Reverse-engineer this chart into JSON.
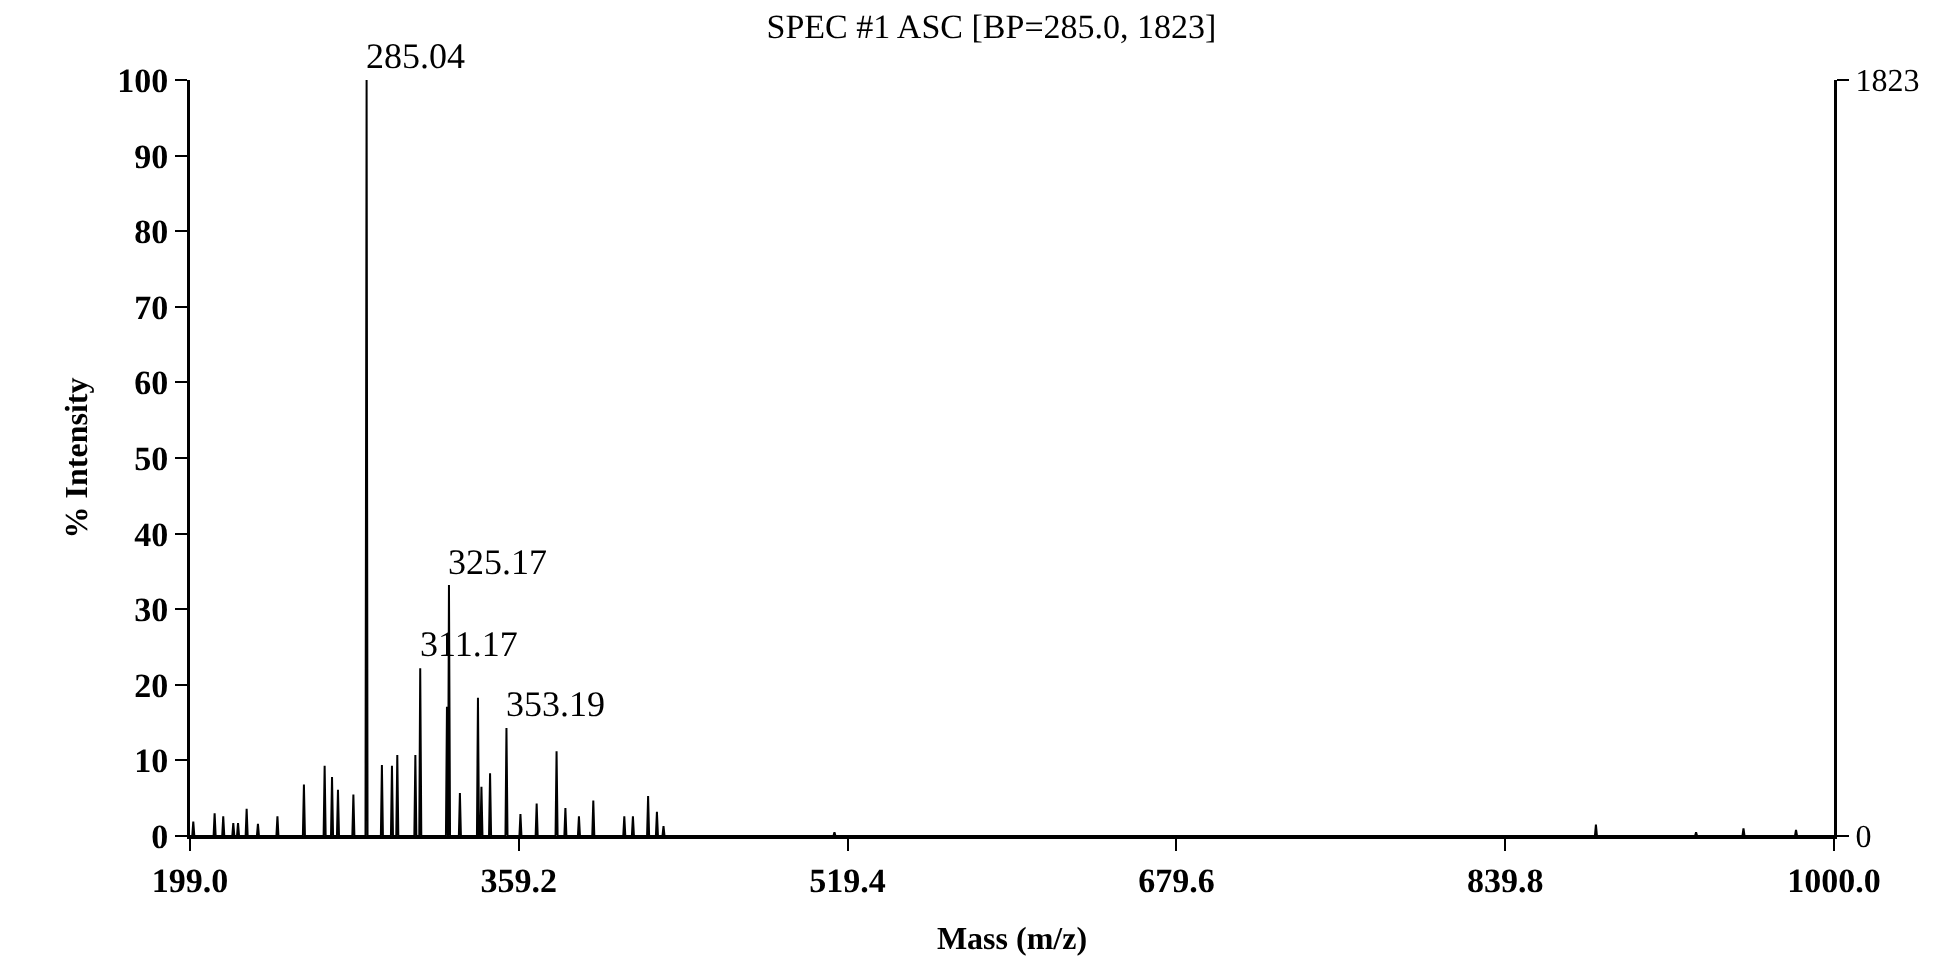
{
  "chart_data": {
    "type": "line",
    "title": "SPEC #1 ASC [BP=285.0, 1823]",
    "xlabel": "Mass (m/z)",
    "ylabel": "% Intensity",
    "series": [
      {
        "color": "#000000",
        "x": [
          199.0,
          200.1,
          200.6,
          201.1,
          210.5,
          211.0,
          211.5,
          214.7,
          215.2,
          215.7,
          219.6,
          220.1,
          220.6,
          221.9,
          222.4,
          222.9,
          226.1,
          226.6,
          227.1,
          231.6,
          232.1,
          232.6,
          241.1,
          241.6,
          242.1,
          254.0,
          254.5,
          255.0,
          264.1,
          264.6,
          265.1,
          267.7,
          268.2,
          268.7,
          270.6,
          271.1,
          271.6,
          278.1,
          278.6,
          279.1,
          284.5,
          285.04,
          285.5,
          292.0,
          292.5,
          293.0,
          296.9,
          297.4,
          297.9,
          299.5,
          300.0,
          300.5,
          308.3,
          308.8,
          309.3,
          310.7,
          311.17,
          311.7,
          323.7,
          324.2,
          324.7,
          325.17,
          325.7,
          330.0,
          330.5,
          331.0,
          338.8,
          339.3,
          339.8,
          340.5,
          341.0,
          341.5,
          344.7,
          345.2,
          345.7,
          352.7,
          353.19,
          353.7,
          359.5,
          360.0,
          360.5,
          367.4,
          367.9,
          368.4,
          377.1,
          377.6,
          378.1,
          381.4,
          381.9,
          382.4,
          388.0,
          388.5,
          389.0,
          395.0,
          395.5,
          396.0,
          410.1,
          410.6,
          411.1,
          414.3,
          414.8,
          415.3,
          421.7,
          422.2,
          422.7,
          426.0,
          426.5,
          427.0,
          429.2,
          429.7,
          430.2,
          512.5,
          513.0,
          513.5,
          883.5,
          884.0,
          884.5,
          932.3,
          932.8,
          933.3,
          955.4,
          955.9,
          956.4,
          981.0,
          981.5,
          982.0,
          1000.0
        ],
        "values": [
          0,
          0,
          1.9,
          0,
          0,
          3.0,
          0,
          0,
          2.6,
          0,
          0,
          1.7,
          0,
          0,
          1.7,
          0,
          0,
          3.6,
          0,
          0,
          1.6,
          0,
          0,
          2.6,
          0,
          0,
          6.8,
          0,
          0,
          9.3,
          0,
          0,
          7.8,
          0,
          0,
          6.1,
          0,
          0,
          5.5,
          0,
          0,
          100,
          0,
          0,
          9.4,
          0,
          0,
          9.3,
          0,
          0,
          10.7,
          0,
          0,
          10.7,
          0,
          0,
          22.2,
          0,
          0,
          17.1,
          0,
          33.2,
          0,
          0,
          5.7,
          0,
          0,
          18.3,
          0,
          0,
          6.5,
          0,
          0,
          8.3,
          0,
          0,
          14.3,
          0,
          0,
          2.9,
          0,
          0,
          4.3,
          0,
          0,
          11.2,
          0,
          0,
          3.7,
          0,
          0,
          2.6,
          0,
          0,
          4.7,
          0,
          0,
          2.6,
          0,
          0,
          2.6,
          0,
          0,
          5.3,
          0,
          0,
          3.2,
          0,
          0,
          1.3,
          0,
          0,
          0.5,
          0,
          0,
          1.5,
          0,
          0,
          0.5,
          0,
          0,
          1.0,
          0,
          0,
          0.8,
          0,
          0
        ]
      }
    ],
    "annotations": [
      {
        "text": "285.04",
        "x": 285.04,
        "y": 100
      },
      {
        "text": "325.17",
        "x": 325.17,
        "y": 33.2
      },
      {
        "text": "311.17",
        "x": 311.17,
        "y": 22.2
      },
      {
        "text": "353.19",
        "x": 353.19,
        "y": 14.3
      }
    ],
    "xlim": [
      199.0,
      1000.0
    ],
    "xticks": [
      {
        "value": 199.0,
        "label": "199.0"
      },
      {
        "value": 359.2,
        "label": "359.2"
      },
      {
        "value": 519.4,
        "label": "519.4"
      },
      {
        "value": 679.6,
        "label": "679.6"
      },
      {
        "value": 839.8,
        "label": "839.8"
      },
      {
        "value": 1000.0,
        "label": "1000.0"
      }
    ],
    "ylim": [
      0,
      100
    ],
    "yticks": [
      0,
      10,
      20,
      30,
      40,
      50,
      60,
      70,
      80,
      90,
      100
    ],
    "y2lim": [
      0,
      1823
    ],
    "y2ticks": [
      0,
      1823
    ],
    "grid": false,
    "legend": false,
    "marker": "none",
    "line_style": "solid"
  }
}
